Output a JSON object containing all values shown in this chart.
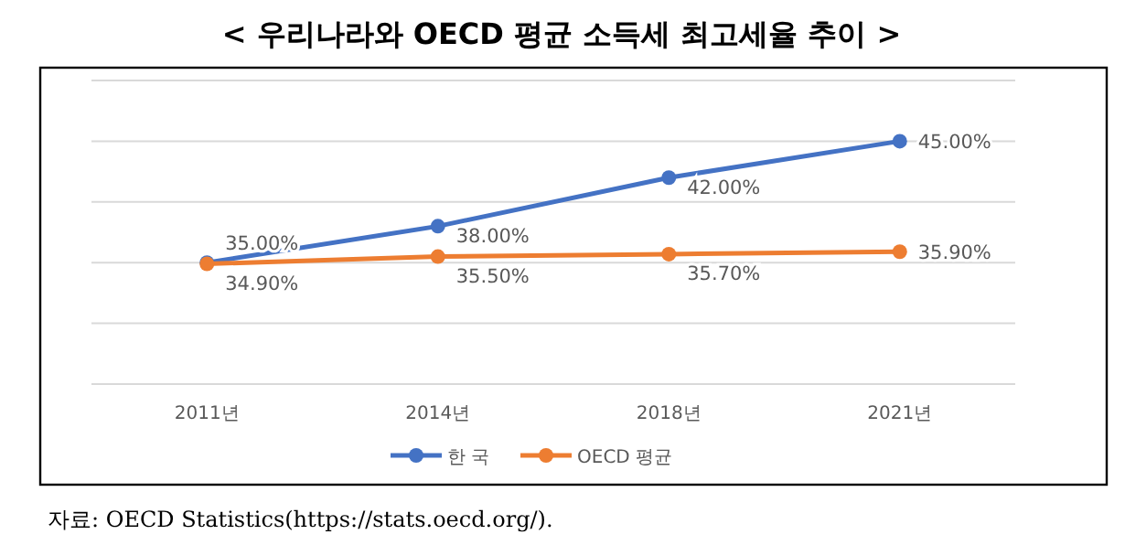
{
  "chart_data": {
    "type": "line",
    "title": "< 우리나라와 OECD 평균 소득세 최고세율 추이 >",
    "categories": [
      "2011년",
      "2014년",
      "2018년",
      "2021년"
    ],
    "series": [
      {
        "name": "한 국",
        "color": "#4472c4",
        "values": [
          35.0,
          38.0,
          42.0,
          45.0
        ],
        "value_labels": [
          "35.00%",
          "38.00%",
          "42.00%",
          "45.00%"
        ]
      },
      {
        "name": "OECD 평균",
        "color": "#ed7d31",
        "values": [
          34.9,
          35.5,
          35.7,
          35.9
        ],
        "value_labels": [
          "34.90%",
          "35.50%",
          "35.70%",
          "35.90%"
        ]
      }
    ],
    "ylim": [
      25,
      50
    ],
    "yticks": [
      {
        "value": 25,
        "label": null
      },
      {
        "value": 30,
        "label": null
      },
      {
        "value": 35,
        "label": null
      },
      {
        "value": 40,
        "label": null
      },
      {
        "value": 45,
        "label": null
      },
      {
        "value": 50,
        "label": null
      }
    ],
    "tick_labels": "x",
    "grid": "y",
    "legend": "bottom",
    "marker": "circle",
    "line_style": "solid",
    "annotations": [
      "자료: OECD Statistics(https://stats.oecd.org/)."
    ]
  }
}
